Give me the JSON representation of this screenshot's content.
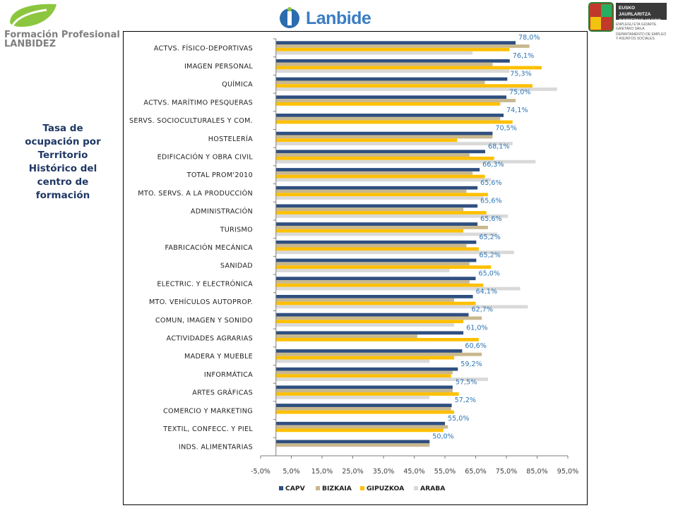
{
  "header": {
    "left_logo_line1": "Formación Profesional",
    "left_logo_line2": "LANBIDEZ",
    "center_logo": "Lanbide",
    "right_box_line1": "EUSKO JAURLARITZA",
    "right_box_line2": "GOBIERNO VASCO",
    "right_small_1": "ENPLEGU ETA GIZARTE",
    "right_small_2": "GAIETAKO SAILA",
    "right_small_3": "DEPARTAMENTO DE EMPLEO",
    "right_small_4": "Y ASUNTOS SOCIALES"
  },
  "side_title": [
    "Tasa de",
    "ocupación por",
    "Territorio",
    "Histórico del",
    "centro de",
    "formación"
  ],
  "colors": {
    "CAPV": "#2f4f7f",
    "BIZKAIA": "#c9b88e",
    "GIPUZKOA": "#ffc000",
    "ARABA": "#d9d9d9",
    "value_label": "#2e75b6"
  },
  "chart_data": {
    "type": "bar",
    "orientation": "horizontal",
    "title": "Tasa de ocupación por Territorio Histórico del centro de formación",
    "categories": [
      "ACTVS. FÍSICO-DEPORTIVAS",
      "IMAGEN PERSONAL",
      "QUÍMICA",
      "ACTVS. MARÍTIMO PESQUERAS",
      "SERVS. SOCIOCULTURALES Y COM.",
      "HOSTELERÍA",
      "EDIFICACIÓN Y OBRA CIVIL",
      "TOTAL PROM'2010",
      "MTO. SERVS. A LA PRODUCCIÓN",
      "ADMINISTRACIÓN",
      "TURISMO",
      "FABRICACIÓN MECÁNICA",
      "SANIDAD",
      "ELECTRIC. Y ELECTRÓNICA",
      "MTO. VEHÍCULOS AUTOPROP.",
      "COMUN, IMAGEN Y SONIDO",
      "ACTIVIDADES AGRARIAS",
      "MADERA Y MUEBLE",
      "INFORMÁTICA",
      "ARTES GRÁFICAS",
      "COMERCIO Y MARKETING",
      "TEXTIL, CONFECC. Y PIEL",
      "INDS. ALIMENTARIAS"
    ],
    "series": [
      {
        "name": "CAPV",
        "values": [
          78.0,
          76.1,
          75.3,
          75.0,
          74.1,
          70.5,
          68.1,
          66.3,
          65.6,
          65.6,
          65.6,
          65.2,
          65.2,
          65.0,
          64.1,
          62.7,
          61.0,
          60.6,
          59.2,
          57.5,
          57.2,
          55.0,
          50.0
        ]
      },
      {
        "name": "BIZKAIA",
        "values": [
          82.5,
          70.5,
          68.0,
          78.0,
          73.0,
          70.5,
          63.0,
          64.0,
          62.0,
          61.0,
          69.0,
          62.0,
          63.0,
          63.0,
          58.0,
          67.0,
          46.0,
          67.0,
          57.5,
          57.5,
          57.0,
          56.0,
          50.0
        ]
      },
      {
        "name": "GIPUZKOA",
        "values": [
          76.0,
          86.5,
          83.5,
          73.0,
          77.0,
          59.0,
          71.0,
          68.0,
          69.0,
          68.5,
          61.0,
          66.0,
          70.0,
          67.5,
          65.0,
          61.0,
          66.0,
          58.0,
          57.0,
          59.5,
          58.0,
          54.5,
          null
        ]
      },
      {
        "name": "ARABA",
        "values": [
          64.0,
          76.0,
          91.5,
          null,
          null,
          77.0,
          84.5,
          70.0,
          67.5,
          75.5,
          72.0,
          77.5,
          56.5,
          79.5,
          82.0,
          58.0,
          null,
          50.0,
          69.0,
          50.0,
          null,
          null,
          null
        ]
      }
    ],
    "data_labels": [
      "78,0%",
      "76,1%",
      "75,3%",
      "75,0%",
      "74,1%",
      "70,5%",
      "68,1%",
      "66,3%",
      "65,6%",
      "65,6%",
      "65,6%",
      "65,2%",
      "65,2%",
      "65,0%",
      "64,1%",
      "62,7%",
      "61,0%",
      "60,6%",
      "59,2%",
      "57,5%",
      "57,2%",
      "55,0%",
      "50,0%"
    ],
    "xlim": [
      -5,
      95
    ],
    "xticks": [
      -5,
      5,
      15,
      25,
      35,
      45,
      55,
      65,
      75,
      85,
      95
    ],
    "xtick_labels": [
      "-5,0%",
      "5,0%",
      "15,0%",
      "25,0%",
      "35,0%",
      "45,0%",
      "55,0%",
      "65,0%",
      "75,0%",
      "85,0%",
      "95,0%"
    ],
    "legend": [
      "CAPV",
      "BIZKAIA",
      "GIPUZKOA",
      "ARABA"
    ],
    "legend_position": "bottom",
    "grid": false
  }
}
